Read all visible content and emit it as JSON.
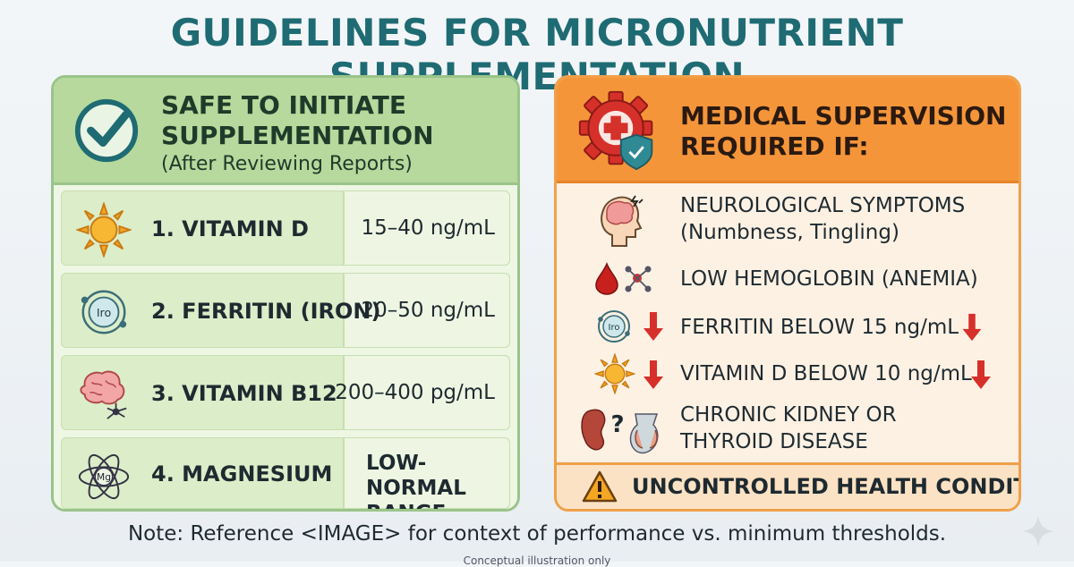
{
  "title": "GUIDELINES FOR MICRONUTRIENT SUPPLEMENTATION",
  "left": {
    "heading_line1": "SAFE TO INITIATE",
    "heading_line2": "SUPPLEMENTATION",
    "heading_sub": "(After Reviewing Reports)",
    "rows": [
      {
        "name": "1. VITAMIN D",
        "value": "15–40 ng/mL",
        "icon": "sun-icon"
      },
      {
        "name": "2. FERRITIN (IRON)",
        "value": "20–50 ng/mL",
        "icon": "iron-atom-icon",
        "icon_text": "Iro"
      },
      {
        "name": "3. VITAMIN B12",
        "value": "200–400 pg/mL",
        "icon": "brain-neuron-icon"
      },
      {
        "name": "4. MAGNESIUM",
        "value_line1": "LOW-NORMAL",
        "value_line2": "RANGE",
        "icon": "magnesium-atom-icon",
        "icon_text": "Mg"
      }
    ]
  },
  "right": {
    "heading_line1": "MEDICAL SUPERVISION",
    "heading_line2": "REQUIRED IF:",
    "items": [
      {
        "line1": "NEUROLOGICAL SYMPTOMS",
        "line2": "(Numbness, Tingling)",
        "icon": "head-brain-icon"
      },
      {
        "line1": "LOW HEMOGLOBIN (ANEMIA)",
        "icon": "blood-drop-icon"
      },
      {
        "line1": "FERRITIN BELOW 15 ng/mL",
        "icon": "iron-atom-icon",
        "icon_text": "Iro"
      },
      {
        "line1": "VITAMIN D BELOW 10 ng/mL",
        "icon": "sun-icon"
      },
      {
        "line1": "CHRONIC KIDNEY OR",
        "line2": "THYROID DISEASE",
        "icon": "kidney-thyroid-icon",
        "icon_text": "?"
      }
    ],
    "footer": "UNCONTROLLED HEALTH CONDITIONS"
  },
  "note": "Note: Reference <IMAGE> for context of performance vs. minimum thresholds.",
  "fine_print": "Conceptual illustration only",
  "colors": {
    "title": "#1f6b73",
    "left_header": "#b7d99d",
    "right_header": "#f5953a",
    "alert_red": "#d6302a"
  }
}
